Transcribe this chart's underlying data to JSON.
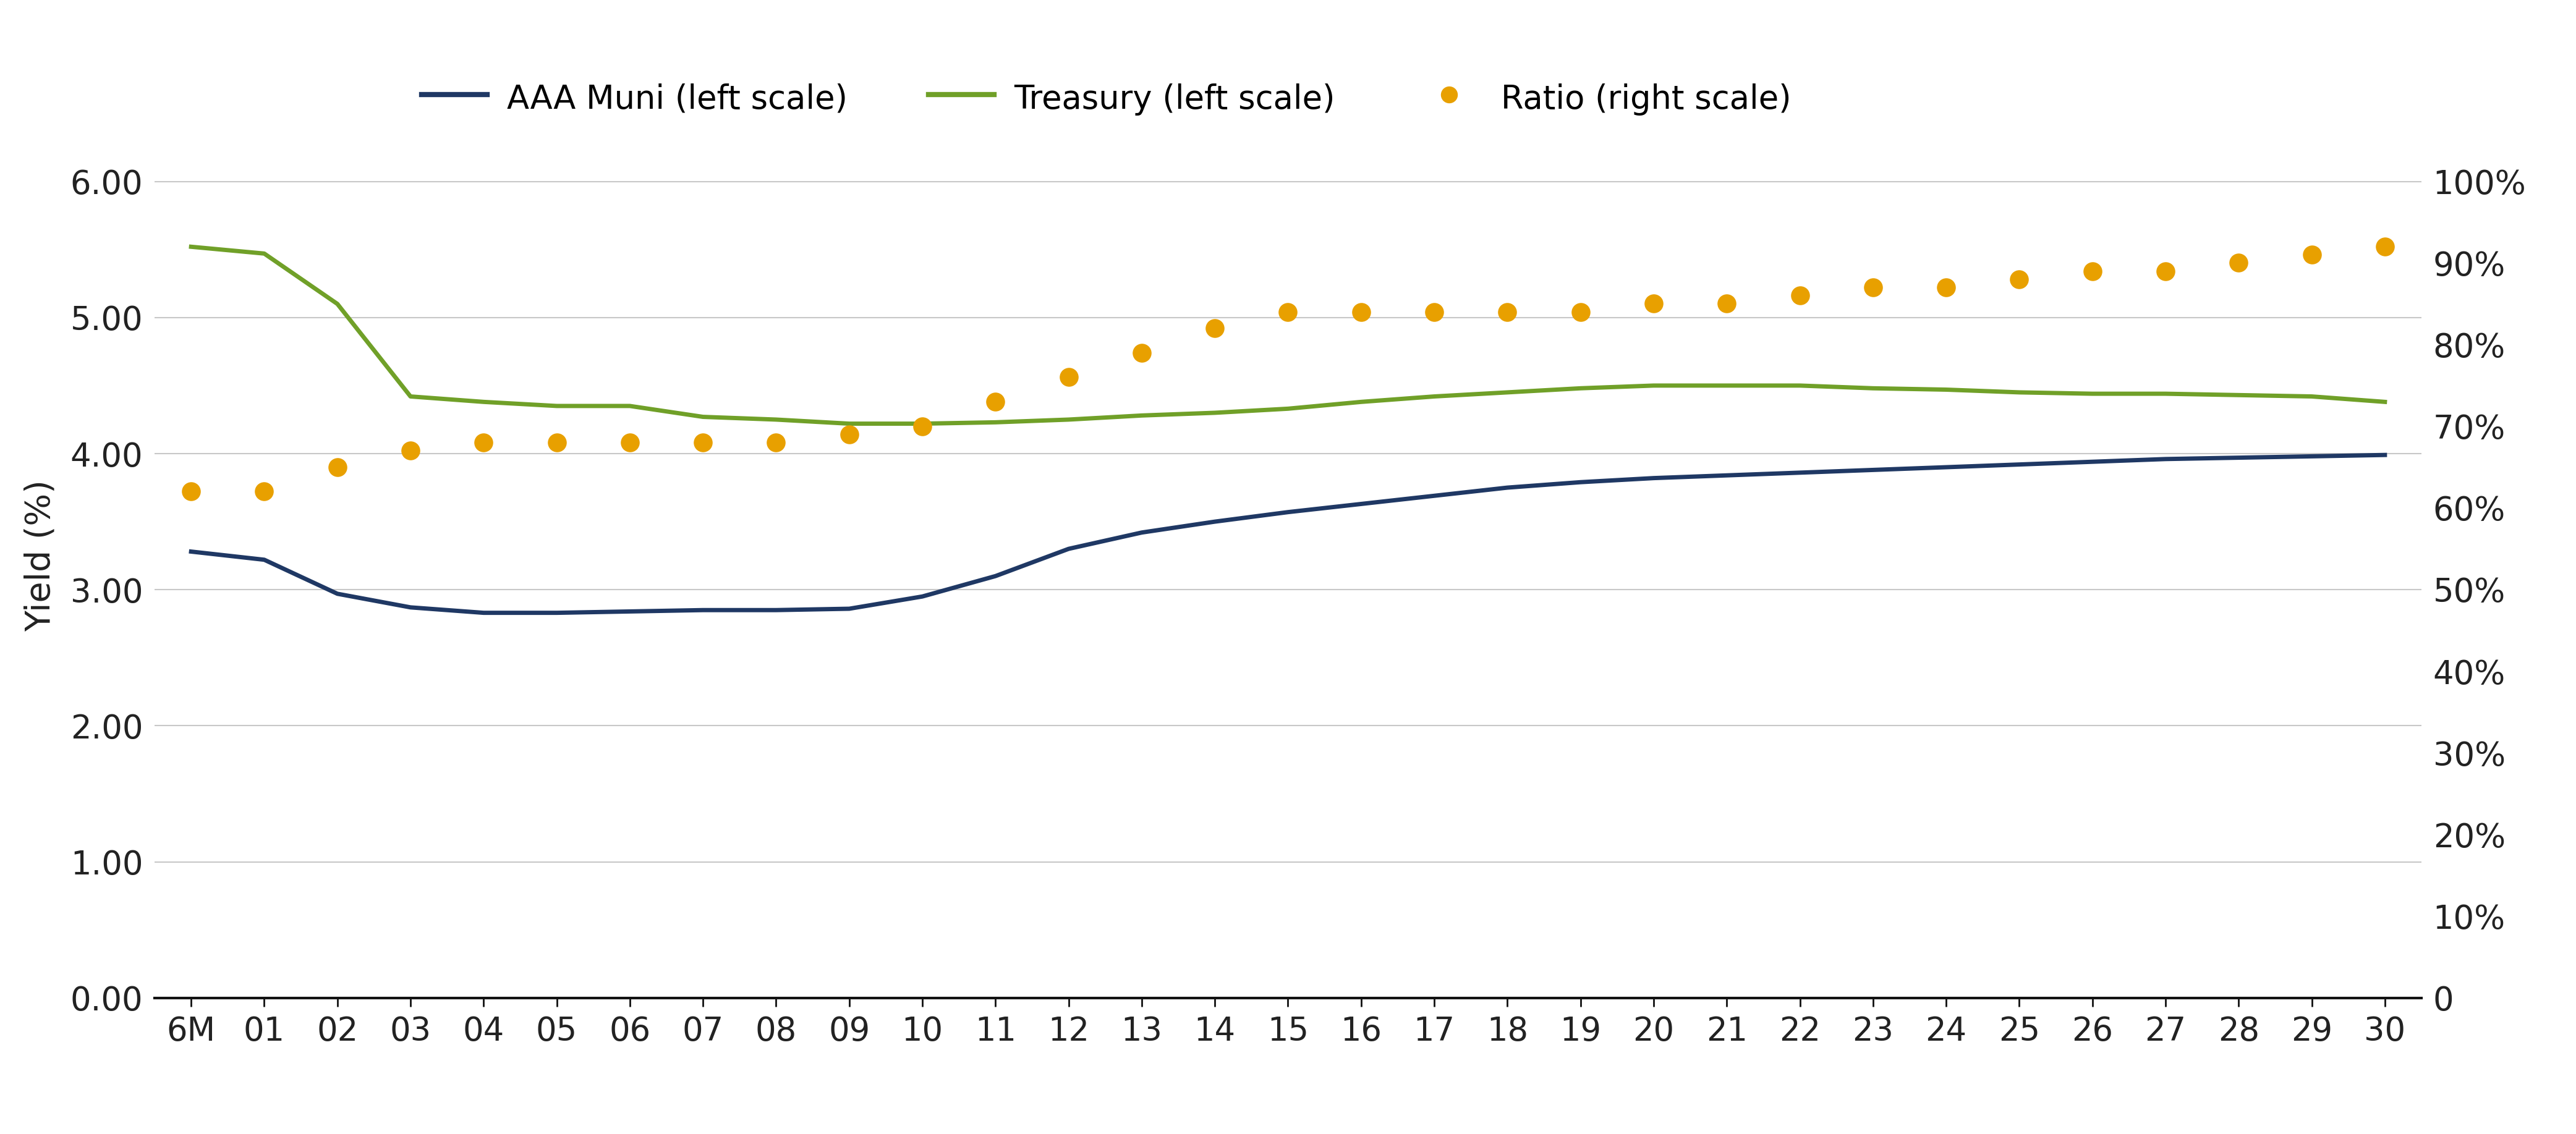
{
  "x_labels": [
    "6M",
    "01",
    "02",
    "03",
    "04",
    "05",
    "06",
    "07",
    "08",
    "09",
    "10",
    "11",
    "12",
    "13",
    "14",
    "15",
    "16",
    "17",
    "18",
    "19",
    "20",
    "21",
    "22",
    "23",
    "24",
    "25",
    "26",
    "27",
    "28",
    "29",
    "30"
  ],
  "muni_yields": [
    3.28,
    3.22,
    2.97,
    2.87,
    2.83,
    2.83,
    2.84,
    2.85,
    2.85,
    2.86,
    2.95,
    3.1,
    3.3,
    3.42,
    3.5,
    3.57,
    3.63,
    3.69,
    3.75,
    3.79,
    3.82,
    3.84,
    3.86,
    3.88,
    3.9,
    3.92,
    3.94,
    3.96,
    3.97,
    3.98,
    3.99
  ],
  "treasury_yields": [
    5.52,
    5.47,
    5.1,
    4.42,
    4.38,
    4.35,
    4.35,
    4.27,
    4.25,
    4.22,
    4.22,
    4.23,
    4.25,
    4.28,
    4.3,
    4.33,
    4.38,
    4.42,
    4.45,
    4.48,
    4.5,
    4.5,
    4.5,
    4.48,
    4.47,
    4.45,
    4.44,
    4.44,
    4.43,
    4.42,
    4.38
  ],
  "ratio": [
    0.62,
    0.62,
    0.65,
    0.67,
    0.68,
    0.68,
    0.68,
    0.68,
    0.68,
    0.69,
    0.7,
    0.73,
    0.76,
    0.79,
    0.82,
    0.84,
    0.84,
    0.84,
    0.84,
    0.84,
    0.85,
    0.85,
    0.86,
    0.87,
    0.87,
    0.88,
    0.89,
    0.89,
    0.9,
    0.91,
    0.92
  ],
  "muni_color": "#1f3864",
  "treasury_color": "#70a028",
  "ratio_color": "#e8a000",
  "muni_label": "AAA Muni (left scale)",
  "treasury_label": "Treasury (left scale)",
  "ratio_label": "Ratio (right scale)",
  "ylabel_left": "Yield (%)",
  "ylim_left": [
    0.0,
    6.5
  ],
  "ylim_right": [
    0.0,
    1.083
  ],
  "yticks_left": [
    0.0,
    1.0,
    2.0,
    3.0,
    4.0,
    5.0,
    6.0
  ],
  "ytick_labels_left": [
    "0.00",
    "1.00",
    "2.00",
    "3.00",
    "4.00",
    "5.00",
    "6.00"
  ],
  "yticks_right": [
    0.0,
    0.1,
    0.2,
    0.3,
    0.4,
    0.5,
    0.6,
    0.7,
    0.8,
    0.9,
    1.0
  ],
  "ytick_labels_right": [
    "0",
    "10%",
    "20%",
    "30%",
    "40%",
    "50%",
    "60%",
    "70%",
    "80%",
    "90%",
    "100%"
  ],
  "background_color": "#ffffff",
  "grid_color": "#c8c8c8",
  "line_width": 5.0,
  "ratio_marker_size": 22,
  "tick_fontsize": 38,
  "legend_fontsize": 38,
  "ylabel_fontsize": 40
}
